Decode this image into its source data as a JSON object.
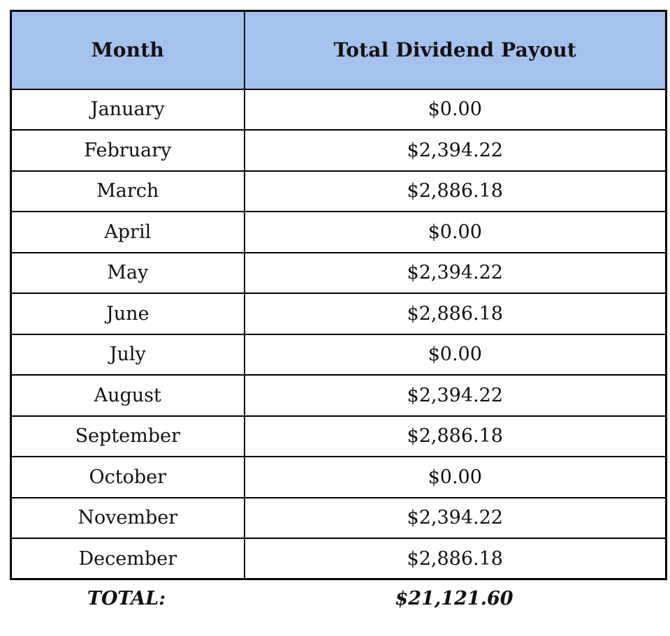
{
  "table": {
    "columns": [
      {
        "label": "Month"
      },
      {
        "label": "Total Dividend Payout"
      }
    ],
    "rows": [
      {
        "month": "January",
        "payout": "$0.00"
      },
      {
        "month": "February",
        "payout": "$2,394.22"
      },
      {
        "month": "March",
        "payout": "$2,886.18"
      },
      {
        "month": "April",
        "payout": "$0.00"
      },
      {
        "month": "May",
        "payout": "$2,394.22"
      },
      {
        "month": "June",
        "payout": "$2,886.18"
      },
      {
        "month": "July",
        "payout": "$0.00"
      },
      {
        "month": "August",
        "payout": "$2,394.22"
      },
      {
        "month": "September",
        "payout": "$2,886.18"
      },
      {
        "month": "October",
        "payout": "$0.00"
      },
      {
        "month": "November",
        "payout": "$2,394.22"
      },
      {
        "month": "December",
        "payout": "$2,886.18"
      }
    ],
    "footer": {
      "label": "TOTAL:",
      "value": "$21,121.60"
    }
  },
  "colors": {
    "header_bg": "#a5c2ef",
    "border": "#000000",
    "text": "#111111"
  }
}
